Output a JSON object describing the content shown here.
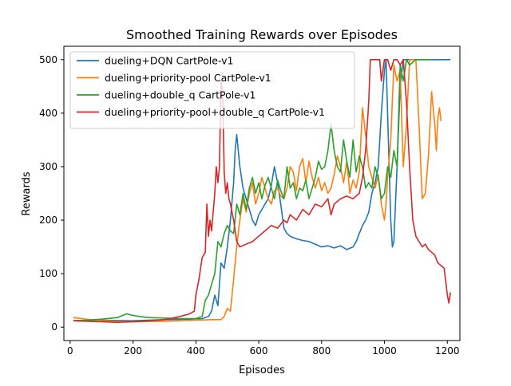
{
  "chart_data": {
    "type": "line",
    "title": "Smoothed Training Rewards over Episodes",
    "xlabel": "Episodes",
    "ylabel": "Rewards",
    "xlim": [
      -20,
      1240
    ],
    "ylim": [
      -25,
      525
    ],
    "xticks": [
      0,
      200,
      400,
      600,
      800,
      1000,
      1200
    ],
    "yticks": [
      0,
      100,
      200,
      300,
      400,
      500
    ],
    "grid": false,
    "legend_position": "top-left",
    "series": [
      {
        "name": "dueling+DQN CartPole-v1",
        "color": "#1f77b4",
        "points": [
          [
            10,
            12
          ],
          [
            100,
            13
          ],
          [
            200,
            12
          ],
          [
            300,
            14
          ],
          [
            380,
            15
          ],
          [
            420,
            16
          ],
          [
            440,
            20
          ],
          [
            450,
            30
          ],
          [
            460,
            60
          ],
          [
            470,
            40
          ],
          [
            480,
            120
          ],
          [
            490,
            110
          ],
          [
            500,
            150
          ],
          [
            510,
            200
          ],
          [
            520,
            270
          ],
          [
            525,
            330
          ],
          [
            530,
            360
          ],
          [
            540,
            300
          ],
          [
            550,
            260
          ],
          [
            560,
            240
          ],
          [
            570,
            220
          ],
          [
            580,
            200
          ],
          [
            590,
            190
          ],
          [
            600,
            210
          ],
          [
            610,
            220
          ],
          [
            620,
            230
          ],
          [
            630,
            240
          ],
          [
            640,
            265
          ],
          [
            650,
            300
          ],
          [
            660,
            270
          ],
          [
            670,
            230
          ],
          [
            680,
            185
          ],
          [
            690,
            175
          ],
          [
            700,
            170
          ],
          [
            720,
            165
          ],
          [
            740,
            162
          ],
          [
            760,
            160
          ],
          [
            780,
            155
          ],
          [
            800,
            150
          ],
          [
            820,
            152
          ],
          [
            840,
            148
          ],
          [
            860,
            152
          ],
          [
            880,
            145
          ],
          [
            900,
            150
          ],
          [
            910,
            160
          ],
          [
            920,
            175
          ],
          [
            930,
            190
          ],
          [
            940,
            200
          ],
          [
            950,
            215
          ],
          [
            960,
            250
          ],
          [
            970,
            270
          ],
          [
            980,
            300
          ],
          [
            990,
            400
          ],
          [
            1000,
            480
          ],
          [
            1005,
            500
          ],
          [
            1015,
            300
          ],
          [
            1020,
            200
          ],
          [
            1025,
            150
          ],
          [
            1030,
            160
          ],
          [
            1040,
            300
          ],
          [
            1050,
            450
          ],
          [
            1060,
            500
          ],
          [
            1100,
            500
          ],
          [
            1150,
            500
          ],
          [
            1200,
            500
          ],
          [
            1210,
            500
          ]
        ]
      },
      {
        "name": "dueling+priority-pool CartPole-v1",
        "color": "#ff7f0e",
        "points": [
          [
            10,
            18
          ],
          [
            50,
            15
          ],
          [
            100,
            12
          ],
          [
            200,
            10
          ],
          [
            300,
            11
          ],
          [
            400,
            13
          ],
          [
            450,
            14
          ],
          [
            480,
            14
          ],
          [
            490,
            20
          ],
          [
            500,
            35
          ],
          [
            510,
            30
          ],
          [
            520,
            90
          ],
          [
            530,
            150
          ],
          [
            540,
            200
          ],
          [
            550,
            240
          ],
          [
            560,
            215
          ],
          [
            570,
            250
          ],
          [
            580,
            270
          ],
          [
            590,
            230
          ],
          [
            600,
            250
          ],
          [
            610,
            280
          ],
          [
            620,
            260
          ],
          [
            630,
            240
          ],
          [
            640,
            230
          ],
          [
            650,
            255
          ],
          [
            660,
            260
          ],
          [
            670,
            245
          ],
          [
            680,
            240
          ],
          [
            690,
            260
          ],
          [
            700,
            300
          ],
          [
            710,
            290
          ],
          [
            720,
            255
          ],
          [
            730,
            300
          ],
          [
            740,
            315
          ],
          [
            750,
            270
          ],
          [
            760,
            310
          ],
          [
            770,
            280
          ],
          [
            780,
            260
          ],
          [
            790,
            280
          ],
          [
            800,
            255
          ],
          [
            810,
            270
          ],
          [
            820,
            250
          ],
          [
            830,
            260
          ],
          [
            840,
            285
          ],
          [
            850,
            320
          ],
          [
            860,
            300
          ],
          [
            870,
            270
          ],
          [
            880,
            310
          ],
          [
            890,
            250
          ],
          [
            900,
            275
          ],
          [
            910,
            260
          ],
          [
            920,
            290
          ],
          [
            930,
            410
          ],
          [
            940,
            360
          ],
          [
            950,
            300
          ],
          [
            960,
            280
          ],
          [
            970,
            260
          ],
          [
            980,
            285
          ],
          [
            990,
            230
          ],
          [
            1000,
            200
          ],
          [
            1005,
            230
          ],
          [
            1010,
            280
          ],
          [
            1020,
            350
          ],
          [
            1030,
            490
          ],
          [
            1040,
            460
          ],
          [
            1050,
            480
          ],
          [
            1060,
            300
          ],
          [
            1070,
            380
          ],
          [
            1080,
            500
          ],
          [
            1090,
            500
          ],
          [
            1100,
            500
          ],
          [
            1110,
            380
          ],
          [
            1120,
            240
          ],
          [
            1130,
            250
          ],
          [
            1140,
            320
          ],
          [
            1150,
            440
          ],
          [
            1160,
            380
          ],
          [
            1165,
            330
          ],
          [
            1170,
            390
          ],
          [
            1175,
            410
          ],
          [
            1180,
            385
          ]
        ]
      },
      {
        "name": "dueling+double_q CartPole-v1",
        "color": "#2ca02c",
        "points": [
          [
            10,
            12
          ],
          [
            50,
            13
          ],
          [
            100,
            15
          ],
          [
            150,
            18
          ],
          [
            180,
            25
          ],
          [
            200,
            22
          ],
          [
            220,
            20
          ],
          [
            250,
            18
          ],
          [
            300,
            17
          ],
          [
            350,
            16
          ],
          [
            400,
            16
          ],
          [
            420,
            20
          ],
          [
            430,
            50
          ],
          [
            440,
            60
          ],
          [
            450,
            80
          ],
          [
            460,
            100
          ],
          [
            470,
            160
          ],
          [
            480,
            150
          ],
          [
            490,
            175
          ],
          [
            500,
            190
          ],
          [
            510,
            180
          ],
          [
            520,
            175
          ],
          [
            530,
            230
          ],
          [
            540,
            210
          ],
          [
            550,
            250
          ],
          [
            560,
            220
          ],
          [
            570,
            260
          ],
          [
            580,
            280
          ],
          [
            590,
            250
          ],
          [
            600,
            270
          ],
          [
            610,
            240
          ],
          [
            620,
            265
          ],
          [
            630,
            280
          ],
          [
            640,
            260
          ],
          [
            650,
            240
          ],
          [
            660,
            275
          ],
          [
            670,
            255
          ],
          [
            680,
            240
          ],
          [
            690,
            300
          ],
          [
            700,
            260
          ],
          [
            710,
            270
          ],
          [
            720,
            240
          ],
          [
            730,
            260
          ],
          [
            740,
            255
          ],
          [
            750,
            275
          ],
          [
            760,
            240
          ],
          [
            770,
            260
          ],
          [
            780,
            280
          ],
          [
            790,
            310
          ],
          [
            800,
            295
          ],
          [
            810,
            300
          ],
          [
            820,
            330
          ],
          [
            830,
            380
          ],
          [
            840,
            330
          ],
          [
            850,
            300
          ],
          [
            860,
            290
          ],
          [
            870,
            350
          ],
          [
            880,
            310
          ],
          [
            890,
            280
          ],
          [
            900,
            350
          ],
          [
            910,
            290
          ],
          [
            920,
            320
          ],
          [
            930,
            300
          ],
          [
            940,
            260
          ],
          [
            950,
            270
          ],
          [
            960,
            260
          ],
          [
            970,
            300
          ],
          [
            980,
            280
          ],
          [
            990,
            240
          ],
          [
            1000,
            250
          ],
          [
            1010,
            300
          ],
          [
            1020,
            280
          ],
          [
            1030,
            330
          ],
          [
            1040,
            300
          ],
          [
            1050,
            490
          ],
          [
            1060,
            460
          ],
          [
            1070,
            500
          ],
          [
            1080,
            490
          ],
          [
            1100,
            500
          ],
          [
            1130,
            500
          ],
          [
            1150,
            500
          ]
        ]
      },
      {
        "name": "dueling+priority-pool+double_q CartPole-v1",
        "color": "#d62728",
        "points": [
          [
            10,
            12
          ],
          [
            50,
            11
          ],
          [
            100,
            10
          ],
          [
            150,
            9
          ],
          [
            200,
            10
          ],
          [
            250,
            12
          ],
          [
            300,
            14
          ],
          [
            350,
            20
          ],
          [
            380,
            25
          ],
          [
            395,
            30
          ],
          [
            400,
            60
          ],
          [
            410,
            90
          ],
          [
            420,
            130
          ],
          [
            430,
            140
          ],
          [
            435,
            230
          ],
          [
            440,
            170
          ],
          [
            445,
            200
          ],
          [
            450,
            180
          ],
          [
            460,
            250
          ],
          [
            465,
            300
          ],
          [
            470,
            270
          ],
          [
            475,
            300
          ],
          [
            480,
            460
          ],
          [
            485,
            440
          ],
          [
            490,
            290
          ],
          [
            495,
            250
          ],
          [
            500,
            270
          ],
          [
            505,
            240
          ],
          [
            510,
            230
          ],
          [
            520,
            200
          ],
          [
            530,
            160
          ],
          [
            540,
            150
          ],
          [
            560,
            155
          ],
          [
            580,
            160
          ],
          [
            600,
            170
          ],
          [
            620,
            180
          ],
          [
            640,
            190
          ],
          [
            660,
            185
          ],
          [
            680,
            200
          ],
          [
            690,
            195
          ],
          [
            700,
            210
          ],
          [
            720,
            200
          ],
          [
            740,
            220
          ],
          [
            760,
            210
          ],
          [
            780,
            230
          ],
          [
            800,
            225
          ],
          [
            820,
            240
          ],
          [
            830,
            210
          ],
          [
            840,
            230
          ],
          [
            860,
            240
          ],
          [
            880,
            245
          ],
          [
            900,
            240
          ],
          [
            920,
            250
          ],
          [
            930,
            280
          ],
          [
            940,
            330
          ],
          [
            950,
            420
          ],
          [
            955,
            500
          ],
          [
            970,
            500
          ],
          [
            985,
            500
          ],
          [
            990,
            460
          ],
          [
            1000,
            500
          ],
          [
            1010,
            500
          ],
          [
            1020,
            480
          ],
          [
            1030,
            500
          ],
          [
            1040,
            500
          ],
          [
            1050,
            490
          ],
          [
            1060,
            500
          ],
          [
            1070,
            420
          ],
          [
            1080,
            300
          ],
          [
            1090,
            200
          ],
          [
            1100,
            170
          ],
          [
            1110,
            160
          ],
          [
            1120,
            150
          ],
          [
            1130,
            155
          ],
          [
            1140,
            145
          ],
          [
            1150,
            140
          ],
          [
            1160,
            135
          ],
          [
            1170,
            120
          ],
          [
            1180,
            115
          ],
          [
            1190,
            110
          ],
          [
            1200,
            60
          ],
          [
            1205,
            45
          ],
          [
            1210,
            65
          ]
        ]
      }
    ]
  }
}
